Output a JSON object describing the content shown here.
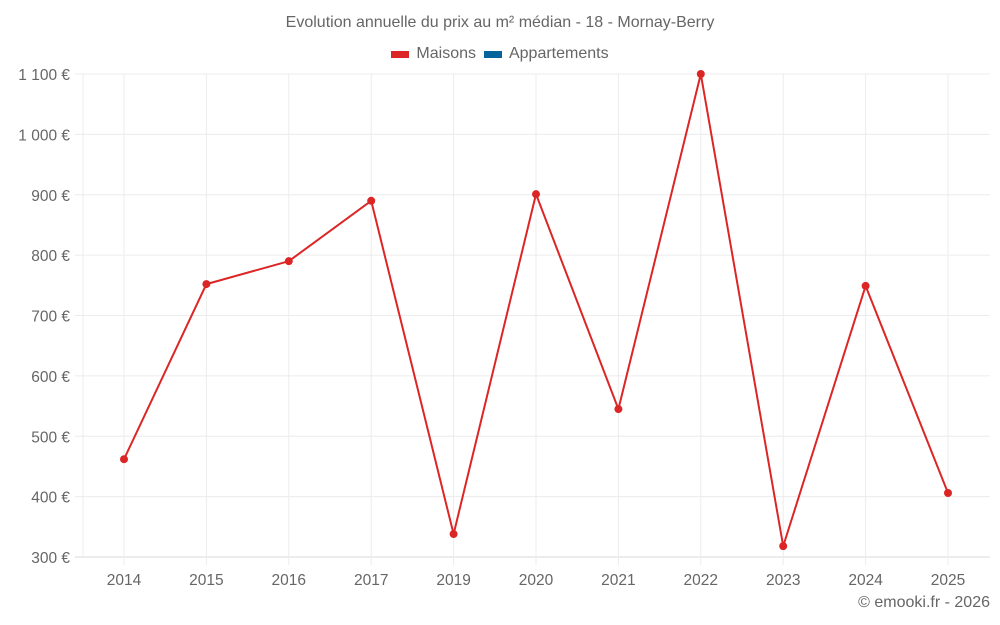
{
  "chart_data": {
    "type": "line",
    "title": "Evolution annuelle du prix au m² médian - 18 - Mornay-Berry",
    "xlabel": "",
    "ylabel": "",
    "categories": [
      "2014",
      "2015",
      "2016",
      "2017",
      "2019",
      "2020",
      "2021",
      "2022",
      "2023",
      "2024",
      "2025"
    ],
    "series": [
      {
        "name": "Maisons",
        "color": "#dc2626",
        "values": [
          462,
          752,
          790,
          890,
          338,
          901,
          545,
          1100,
          318,
          749,
          406
        ]
      },
      {
        "name": "Appartements",
        "color": "#05659a",
        "values": []
      }
    ],
    "ylim": [
      300,
      1100
    ],
    "yticks": [
      300,
      400,
      500,
      600,
      700,
      800,
      900,
      1000,
      1100
    ],
    "ytick_labels": [
      "300 €",
      "400 €",
      "500 €",
      "600 €",
      "700 €",
      "800 €",
      "900 €",
      "1 000 €",
      "1 100 €"
    ],
    "grid": true,
    "legend_position": "top"
  },
  "legend": [
    {
      "label": "Maisons",
      "color": "#dc2626"
    },
    {
      "label": "Appartements",
      "color": "#05659a"
    }
  ],
  "credit": "© emooki.fr - 2026"
}
